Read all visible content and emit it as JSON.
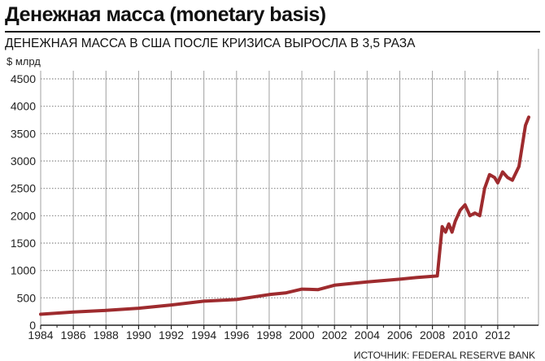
{
  "chart_data": {
    "type": "line",
    "title": "Денежная масса (monetary basis)",
    "subtitle": "ДЕНЕЖНАЯ МАССА В США ПОСЛЕ КРИЗИСА ВЫРОСЛА В 3,5 РАЗА",
    "ylabel": "$ млрд",
    "xlabel": "",
    "source": "ИСТОЧНИК: FEDERAL RESERVE BANK",
    "ylim": [
      0,
      4500
    ],
    "xlim": [
      1984,
      2014
    ],
    "grid": true,
    "yticks": [
      "0",
      "500",
      "1000",
      "1500",
      "2000",
      "2500",
      "3000",
      "3500",
      "4000",
      "4500"
    ],
    "xticks": [
      "1984",
      "1986",
      "1988",
      "1990",
      "1992",
      "1994",
      "1996",
      "1998",
      "2000",
      "2002",
      "2004",
      "2006",
      "2008",
      "2010",
      "2012"
    ],
    "line_color": "#9e2b2e",
    "series": [
      {
        "x": [
          1984,
          1986,
          1988,
          1990,
          1992,
          1994,
          1996,
          1998,
          1999,
          2000,
          2001,
          2002,
          2004,
          2006,
          2007,
          2008.3,
          2008.6,
          2008.8,
          2009.0,
          2009.2,
          2009.4,
          2009.7,
          2010.0,
          2010.3,
          2010.6,
          2010.9,
          2011.2,
          2011.5,
          2011.8,
          2012.0,
          2012.3,
          2012.6,
          2012.9,
          2013.3,
          2013.7,
          2013.9
        ],
        "y": [
          200,
          240,
          270,
          310,
          370,
          440,
          470,
          560,
          590,
          660,
          650,
          730,
          790,
          840,
          870,
          900,
          1800,
          1700,
          1850,
          1700,
          1900,
          2100,
          2200,
          2000,
          2050,
          2000,
          2500,
          2750,
          2700,
          2600,
          2800,
          2700,
          2650,
          2900,
          3650,
          3800
        ]
      }
    ]
  }
}
